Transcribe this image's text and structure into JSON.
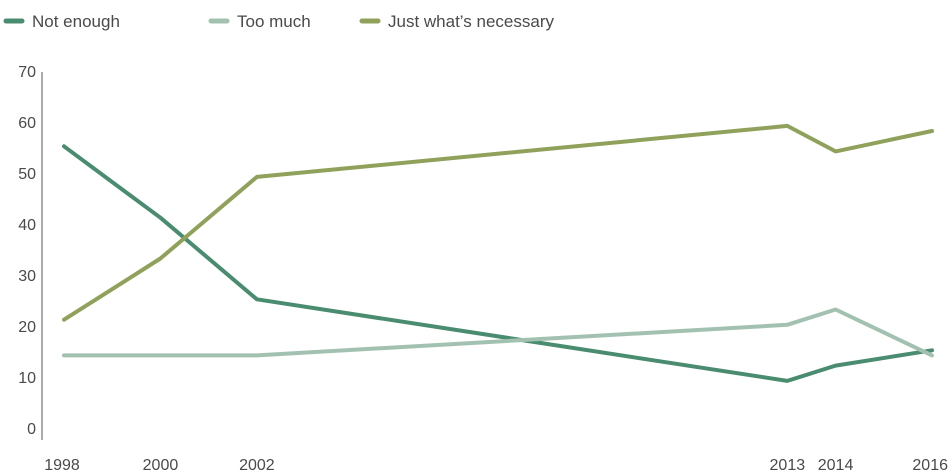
{
  "chart_data": {
    "type": "line",
    "x": [
      1998,
      2000,
      2002,
      2013,
      2014,
      2016
    ],
    "x_tick_labels": [
      "1998",
      "2000",
      "2002",
      "2013",
      "2014",
      "2016"
    ],
    "y_ticks": [
      0,
      10,
      20,
      30,
      40,
      50,
      60,
      70
    ],
    "ylim": [
      0,
      70
    ],
    "xlim": [
      1998,
      2016
    ],
    "series": [
      {
        "name": "Not enough",
        "color": "#4a8c6f",
        "values": [
          57,
          43,
          27,
          11,
          14,
          17
        ]
      },
      {
        "name": "Too much",
        "color": "#a3c1b0",
        "values": [
          16,
          16,
          16,
          22,
          25,
          16
        ]
      },
      {
        "name": "Just what’s necessary",
        "color": "#8fa15a",
        "values": [
          23,
          35,
          51,
          61,
          56,
          60
        ]
      }
    ],
    "legend_position": "top-left",
    "grid": false
  }
}
